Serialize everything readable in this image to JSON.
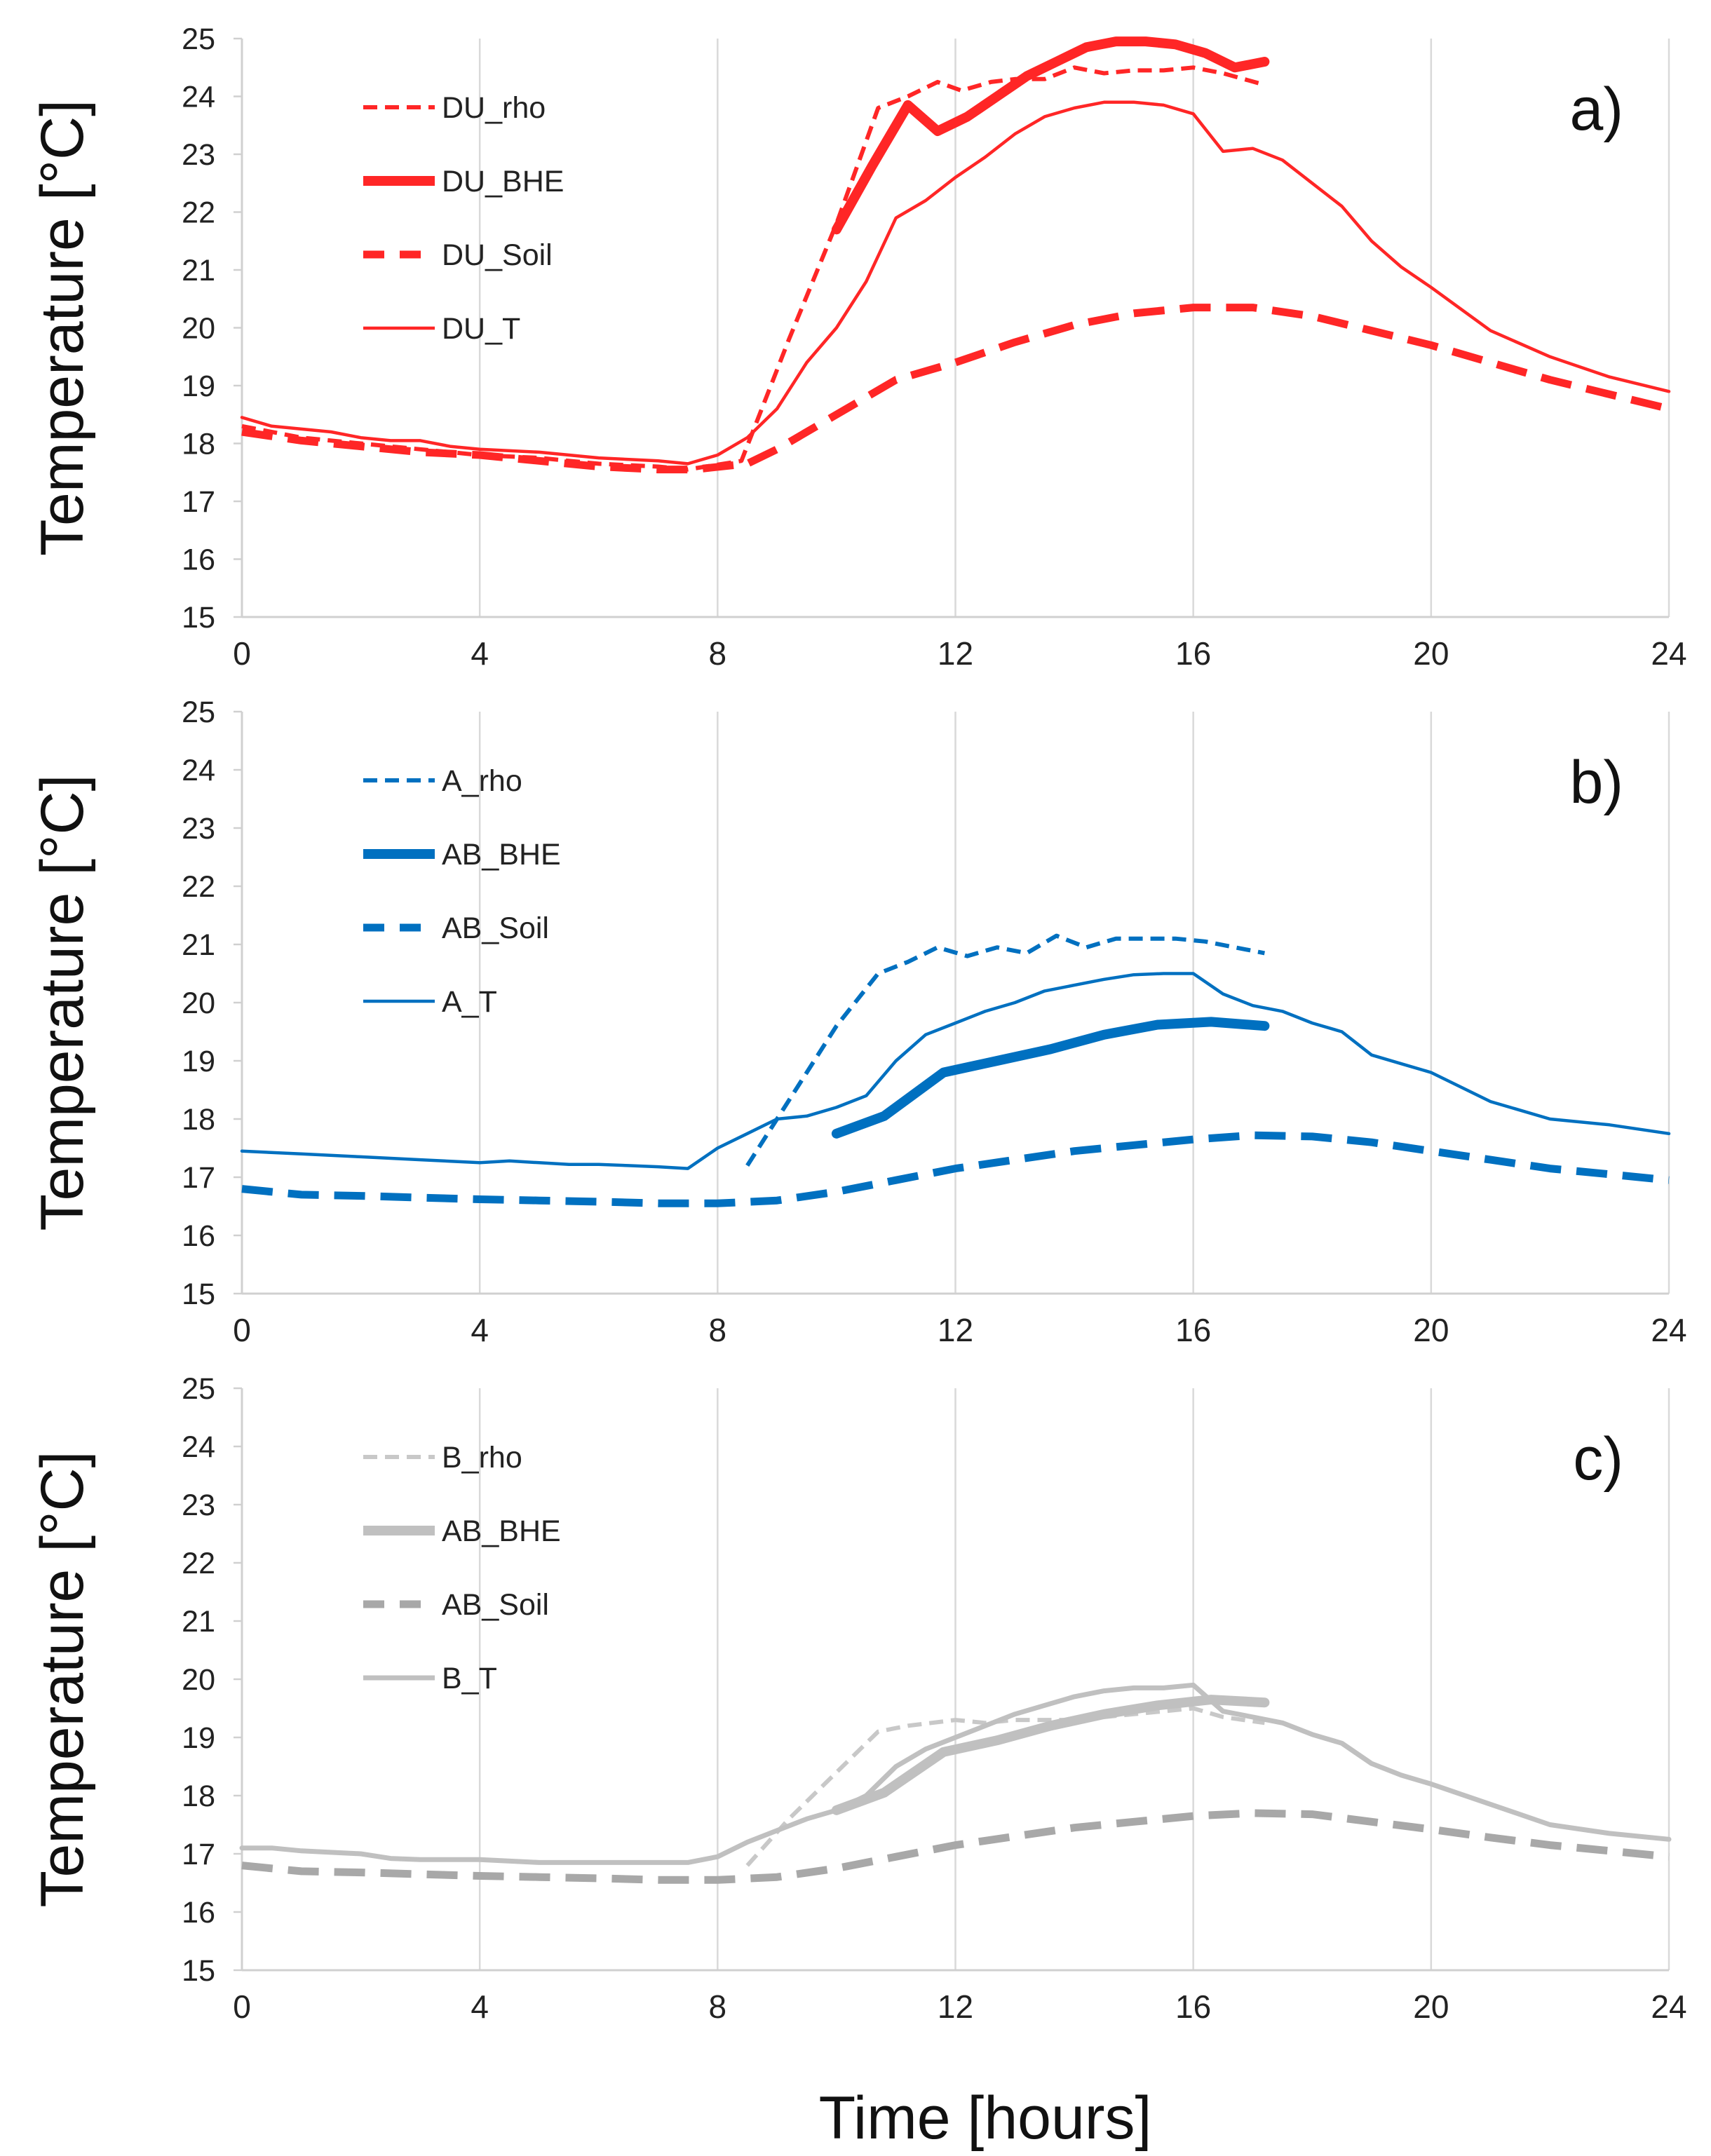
{
  "figure": {
    "xlabel": "Time [hours]"
  },
  "chart_data": [
    {
      "panel_label": "a)",
      "type": "line",
      "xlabel": "Time [hours]",
      "ylabel": "Temperature [°C]",
      "xlim": [
        0,
        24
      ],
      "ylim": [
        15,
        25
      ],
      "xticks": [
        0,
        4,
        8,
        12,
        16,
        20,
        24
      ],
      "yticks": [
        15,
        16,
        17,
        18,
        19,
        20,
        21,
        22,
        23,
        24,
        25
      ],
      "grid": "vertical",
      "legend_position": "top-left",
      "series": [
        {
          "name": "DU_rho",
          "color": "#ff2626",
          "style": "short-dash",
          "x": [
            0,
            1,
            2,
            3,
            4,
            5,
            6,
            7,
            7.5,
            8.4,
            9.2,
            10,
            10.7,
            11.2,
            11.7,
            12.1,
            12.6,
            13,
            13.5,
            14,
            14.5,
            15,
            15.5,
            16,
            16.5,
            17.2
          ],
          "y": [
            18.3,
            18.1,
            18.0,
            17.9,
            17.8,
            17.75,
            17.65,
            17.6,
            17.55,
            17.7,
            19.8,
            21.8,
            23.8,
            24.0,
            24.25,
            24.1,
            24.25,
            24.3,
            24.3,
            24.5,
            24.4,
            24.45,
            24.45,
            24.5,
            24.4,
            24.2
          ]
        },
        {
          "name": "DU_BHE",
          "color": "#ff2626",
          "style": "thick",
          "x": [
            10,
            10.6,
            11.2,
            11.7,
            12.2,
            12.7,
            13.2,
            13.7,
            14.2,
            14.7,
            15.2,
            15.7,
            16.2,
            16.7,
            17.2
          ],
          "y": [
            21.7,
            22.8,
            23.85,
            23.4,
            23.65,
            24.0,
            24.35,
            24.6,
            24.85,
            24.95,
            24.95,
            24.9,
            24.75,
            24.5,
            24.6
          ]
        },
        {
          "name": "DU_Soil",
          "color": "#ff2626",
          "style": "long-dash",
          "x": [
            0,
            1,
            2,
            3,
            4,
            5,
            6,
            7,
            7.6,
            8.5,
            9,
            10,
            11,
            12,
            13,
            14,
            15,
            16,
            17,
            18,
            19,
            20,
            21,
            22,
            23,
            24
          ],
          "y": [
            18.2,
            18.05,
            17.95,
            17.85,
            17.8,
            17.7,
            17.6,
            17.55,
            17.55,
            17.65,
            17.9,
            18.5,
            19.1,
            19.4,
            19.75,
            20.05,
            20.25,
            20.35,
            20.35,
            20.2,
            19.95,
            19.7,
            19.4,
            19.1,
            18.85,
            18.6
          ]
        },
        {
          "name": "DU_T",
          "color": "#ff2626",
          "style": "thin",
          "x": [
            0,
            0.5,
            1.5,
            2,
            2.5,
            3,
            3.5,
            4,
            5,
            6,
            7,
            7.5,
            8,
            8.5,
            9,
            9.5,
            10,
            10.5,
            11,
            11.5,
            12,
            12.5,
            13,
            13.5,
            14,
            14.5,
            15,
            15.5,
            16,
            16.5,
            17,
            17.5,
            18,
            18.5,
            19,
            19.5,
            20,
            21,
            22,
            23,
            24
          ],
          "y": [
            18.45,
            18.3,
            18.2,
            18.1,
            18.05,
            18.05,
            17.95,
            17.9,
            17.85,
            17.75,
            17.7,
            17.65,
            17.8,
            18.1,
            18.6,
            19.4,
            20.0,
            20.8,
            21.9,
            22.2,
            22.6,
            22.95,
            23.35,
            23.65,
            23.8,
            23.9,
            23.9,
            23.85,
            23.7,
            23.05,
            23.1,
            22.9,
            22.5,
            22.1,
            21.5,
            21.05,
            20.7,
            19.95,
            19.5,
            19.15,
            18.9
          ]
        }
      ]
    },
    {
      "panel_label": "b)",
      "type": "line",
      "xlabel": "Time [hours]",
      "ylabel": "Temperature [°C]",
      "xlim": [
        0,
        24
      ],
      "ylim": [
        15,
        25
      ],
      "xticks": [
        0,
        4,
        8,
        12,
        16,
        20,
        24
      ],
      "yticks": [
        15,
        16,
        17,
        18,
        19,
        20,
        21,
        22,
        23,
        24,
        25
      ],
      "grid": "vertical",
      "legend_position": "top-left",
      "series": [
        {
          "name": "A_rho",
          "color": "#0070c0",
          "style": "short-dash",
          "x": [
            8.5,
            9,
            9.5,
            10,
            10.7,
            11.2,
            11.7,
            12.2,
            12.7,
            13.2,
            13.7,
            14.2,
            14.7,
            15.2,
            15.7,
            16.2,
            16.7,
            17.2
          ],
          "y": [
            17.2,
            18.0,
            18.8,
            19.6,
            20.5,
            20.7,
            20.95,
            20.8,
            20.95,
            20.85,
            21.15,
            20.95,
            21.1,
            21.1,
            21.1,
            21.05,
            20.95,
            20.85
          ]
        },
        {
          "name": "AB_BHE",
          "color": "#0070c0",
          "style": "thick",
          "x": [
            10,
            10.8,
            11.8,
            12.7,
            13.6,
            14.5,
            15.4,
            16.3,
            17.2
          ],
          "y": [
            17.75,
            18.05,
            18.8,
            19.0,
            19.2,
            19.45,
            19.62,
            19.67,
            19.6
          ]
        },
        {
          "name": "AB_Soil",
          "color": "#0070c0",
          "style": "long-dash",
          "x": [
            0,
            0.5,
            1,
            2,
            3,
            4,
            5,
            6,
            7,
            8,
            9,
            10,
            11,
            12,
            13,
            14,
            15,
            16,
            17,
            18,
            19,
            20,
            21,
            22,
            23,
            24
          ],
          "y": [
            16.8,
            16.75,
            16.7,
            16.68,
            16.65,
            16.62,
            16.6,
            16.58,
            16.55,
            16.55,
            16.6,
            16.75,
            16.95,
            17.15,
            17.3,
            17.45,
            17.55,
            17.65,
            17.72,
            17.7,
            17.6,
            17.45,
            17.3,
            17.15,
            17.05,
            16.95
          ]
        },
        {
          "name": "A_T",
          "color": "#0070c0",
          "style": "thin",
          "x": [
            0,
            1,
            2,
            3,
            4,
            4.5,
            5,
            5.5,
            6,
            6.5,
            7,
            7.5,
            8,
            8.5,
            9,
            9.5,
            10,
            10.5,
            11,
            11.5,
            12,
            12.5,
            13,
            13.5,
            14,
            14.5,
            15,
            15.5,
            16,
            16.5,
            17,
            17.5,
            18,
            18.5,
            19,
            19.5,
            20,
            21,
            22,
            23,
            24
          ],
          "y": [
            17.45,
            17.4,
            17.35,
            17.3,
            17.25,
            17.28,
            17.25,
            17.22,
            17.22,
            17.2,
            17.18,
            17.15,
            17.5,
            17.75,
            18.0,
            18.05,
            18.2,
            18.4,
            19.0,
            19.45,
            19.65,
            19.85,
            20.0,
            20.2,
            20.3,
            20.4,
            20.48,
            20.5,
            20.5,
            20.15,
            19.95,
            19.85,
            19.65,
            19.5,
            19.1,
            18.95,
            18.8,
            18.3,
            18.0,
            17.9,
            17.75
          ]
        }
      ]
    },
    {
      "panel_label": "c)",
      "type": "line",
      "xlabel": "Time [hours]",
      "ylabel": "Temperature [°C]",
      "xlim": [
        0,
        24
      ],
      "ylim": [
        15,
        25
      ],
      "xticks": [
        0,
        4,
        8,
        12,
        16,
        20,
        24
      ],
      "yticks": [
        15,
        16,
        17,
        18,
        19,
        20,
        21,
        22,
        23,
        24,
        25
      ],
      "grid": "vertical",
      "legend_position": "top-left",
      "series": [
        {
          "name": "B_rho",
          "color": "#c8c8c8",
          "style": "short-dash",
          "x": [
            8.5,
            9.2,
            10,
            10.7,
            11.2,
            12,
            12.5,
            13,
            13.5,
            14,
            14.5,
            15,
            15.5,
            16,
            16.5,
            17.2
          ],
          "y": [
            16.8,
            17.6,
            18.4,
            19.1,
            19.2,
            19.3,
            19.25,
            19.3,
            19.3,
            19.3,
            19.35,
            19.4,
            19.45,
            19.5,
            19.35,
            19.25
          ]
        },
        {
          "name": "AB_BHE",
          "color": "#c0c0c0",
          "style": "thick",
          "x": [
            10,
            10.8,
            11.8,
            12.7,
            13.6,
            14.5,
            15.4,
            16.3,
            17.2
          ],
          "y": [
            17.75,
            18.05,
            18.75,
            18.95,
            19.2,
            19.4,
            19.55,
            19.65,
            19.6
          ]
        },
        {
          "name": "AB_Soil",
          "color": "#a8a8a8",
          "style": "long-dash",
          "x": [
            0,
            0.5,
            1,
            2,
            3,
            4,
            5,
            6,
            7,
            8,
            9,
            10,
            11,
            12,
            13,
            14,
            15,
            16,
            17,
            18,
            19,
            20,
            21,
            22,
            23,
            24
          ],
          "y": [
            16.8,
            16.75,
            16.7,
            16.68,
            16.65,
            16.62,
            16.6,
            16.58,
            16.55,
            16.55,
            16.6,
            16.75,
            16.95,
            17.15,
            17.3,
            17.45,
            17.55,
            17.65,
            17.7,
            17.68,
            17.55,
            17.42,
            17.28,
            17.15,
            17.05,
            16.95
          ]
        },
        {
          "name": "B_T",
          "color": "#c0c0c0",
          "style": "medium",
          "x": [
            0,
            0.5,
            1,
            2,
            2.5,
            3,
            4,
            5,
            6,
            7,
            7.5,
            8,
            8.5,
            9,
            9.5,
            10,
            10.5,
            11,
            11.5,
            12,
            12.5,
            13,
            13.5,
            14,
            14.5,
            15,
            15.5,
            16,
            16.5,
            17,
            17.5,
            18,
            18.5,
            19,
            19.5,
            20,
            21,
            22,
            23,
            24
          ],
          "y": [
            17.1,
            17.1,
            17.05,
            17.0,
            16.92,
            16.9,
            16.9,
            16.85,
            16.85,
            16.85,
            16.85,
            16.95,
            17.2,
            17.4,
            17.6,
            17.75,
            18.0,
            18.5,
            18.8,
            19.0,
            19.2,
            19.4,
            19.55,
            19.7,
            19.8,
            19.85,
            19.85,
            19.9,
            19.45,
            19.35,
            19.25,
            19.05,
            18.9,
            18.55,
            18.35,
            18.2,
            17.85,
            17.5,
            17.35,
            17.25
          ]
        }
      ]
    }
  ]
}
